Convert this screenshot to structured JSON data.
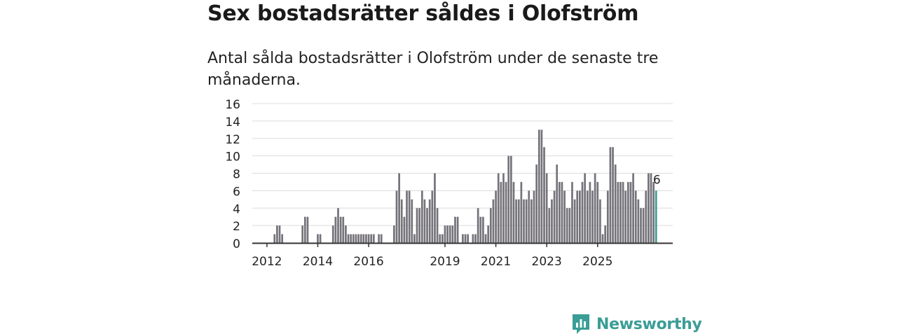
{
  "header": {
    "title": "Sex bostadsrätter såldes i Olofström",
    "subtitle": "Antal sålda bostadsrätter i Olofström under de senaste tre månaderna."
  },
  "logo": {
    "text": "Newsworthy",
    "icon": "bar-chart-icon"
  },
  "colors": {
    "bar": "#75737a",
    "highlight": "#3a9d96",
    "grid": "#dcdcdc",
    "axis": "#333333"
  },
  "chart_data": {
    "type": "bar",
    "x_ticks": [
      "2012",
      "2014",
      "2016",
      "2019",
      "2021",
      "2023",
      "2025"
    ],
    "x_tick_positions": [
      4,
      24,
      44,
      74,
      94,
      114,
      134
    ],
    "y_ticks": [
      0,
      2,
      4,
      6,
      8,
      10,
      12,
      14,
      16
    ],
    "ylim": [
      0,
      16
    ],
    "highlight_label": "6",
    "values": [
      0,
      0,
      0,
      0,
      0,
      0,
      0,
      1,
      2,
      2,
      1,
      0,
      0,
      0,
      0,
      0,
      0,
      0,
      2,
      3,
      3,
      0,
      0,
      0,
      1,
      1,
      0,
      0,
      0,
      0,
      2,
      3,
      4,
      3,
      3,
      2,
      1,
      1,
      1,
      1,
      1,
      1,
      1,
      1,
      1,
      1,
      1,
      0,
      1,
      1,
      0,
      0,
      0,
      0,
      2,
      6,
      8,
      5,
      3,
      6,
      6,
      5,
      1,
      4,
      4,
      6,
      5,
      4,
      5,
      6,
      8,
      4,
      1,
      1,
      2,
      2,
      2,
      2,
      3,
      3,
      0,
      1,
      1,
      1,
      0,
      1,
      1,
      4,
      3,
      3,
      1,
      2,
      4,
      5,
      6,
      8,
      7,
      8,
      7,
      10,
      10,
      7,
      5,
      5,
      7,
      5,
      5,
      6,
      5,
      6,
      9,
      13,
      13,
      11,
      8,
      4,
      5,
      6,
      9,
      7,
      7,
      6,
      4,
      4,
      7,
      5,
      6,
      6,
      7,
      8,
      6,
      7,
      6,
      8,
      7,
      5,
      1,
      2,
      6,
      11,
      11,
      9,
      7,
      7,
      7,
      6,
      7,
      7,
      8,
      6,
      5,
      4,
      4,
      6,
      8,
      8,
      7,
      6
    ],
    "highlight_index": 157
  }
}
